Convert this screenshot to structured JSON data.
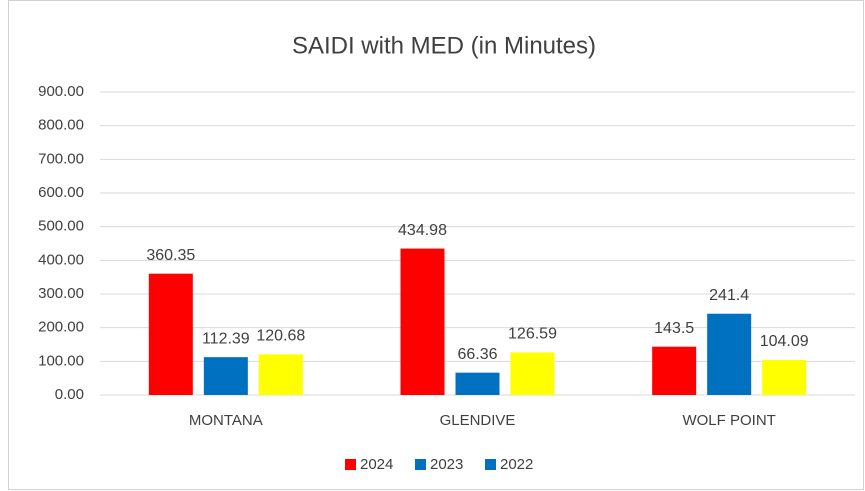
{
  "chart_data": {
    "type": "bar",
    "title": "SAIDI with MED (in Minutes)",
    "categories": [
      "MONTANA",
      "GLENDIVE",
      "WOLF POINT"
    ],
    "series": [
      {
        "name": "2024",
        "color": "#ff0000",
        "legend_color": "#ff0000",
        "values": [
          360.35,
          434.98,
          143.5
        ]
      },
      {
        "name": "2023",
        "color": "#0070c0",
        "legend_color": "#0070c0",
        "values": [
          112.39,
          66.36,
          241.4
        ]
      },
      {
        "name": "2022",
        "color": "#ffff00",
        "legend_color": "#0070c0",
        "values": [
          120.68,
          126.59,
          104.09
        ]
      }
    ],
    "ylim": [
      0,
      900
    ],
    "yticks": [
      {
        "value": 0,
        "label": "0.00"
      },
      {
        "value": 100,
        "label": "100.00"
      },
      {
        "value": 200,
        "label": "200.00"
      },
      {
        "value": 300,
        "label": "300.00"
      },
      {
        "value": 400,
        "label": "400.00"
      },
      {
        "value": 500,
        "label": "500.00"
      },
      {
        "value": 600,
        "label": "600.00"
      },
      {
        "value": 700,
        "label": "700.00"
      },
      {
        "value": 800,
        "label": "800.00"
      },
      {
        "value": 900,
        "label": "900.00"
      }
    ],
    "grid": true,
    "legend": "bottom"
  }
}
